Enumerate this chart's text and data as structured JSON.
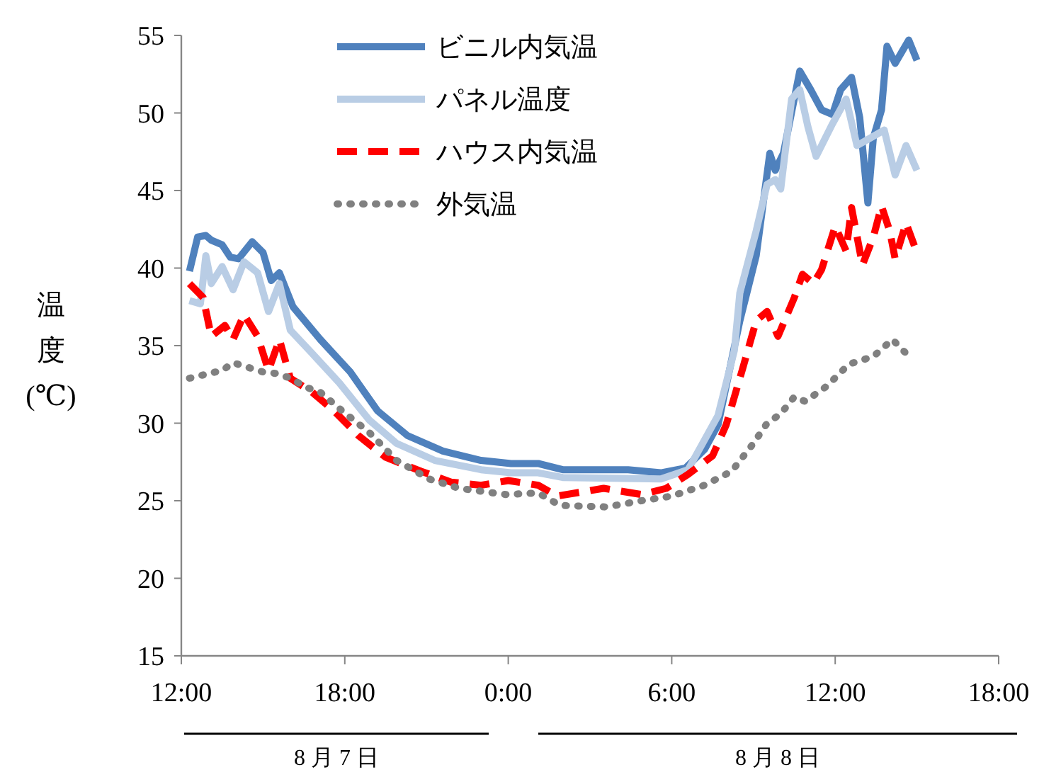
{
  "chart_data": {
    "type": "line",
    "ylabel": "温度(℃)",
    "xlim": [
      "--08-07T12:00",
      "--08-08T18:00"
    ],
    "xticks": [
      {
        "value": "--08-07T12:00",
        "label": "12:00"
      },
      {
        "value": "--08-07T18:00",
        "label": "18:00"
      },
      {
        "value": "--08-08T00:00",
        "label": "0:00"
      },
      {
        "value": "--08-08T06:00",
        "label": "6:00"
      },
      {
        "value": "--08-08T12:00",
        "label": "12:00"
      },
      {
        "value": "--08-08T18:00",
        "label": "18:00"
      }
    ],
    "ylim": [
      15,
      55
    ],
    "yticks": [
      15,
      20,
      25,
      30,
      35,
      40,
      45,
      50,
      55
    ],
    "grid": false,
    "legend": "top",
    "marker": "none",
    "annotations": [
      "8 月 7 日",
      "8 月 8 日"
    ],
    "series": [
      {
        "name": "ビニル内気温",
        "color": "#4f81bd",
        "line_style": "solid",
        "x": [
          "--08-07T12:18",
          "--08-07T12:36",
          "--08-07T12:54",
          "--08-07T13:06",
          "--08-07T13:30",
          "--08-07T13:48",
          "--08-07T14:06",
          "--08-07T14:36",
          "--08-07T15:00",
          "--08-07T15:18",
          "--08-07T15:36",
          "--08-07T16:06",
          "--08-07T17:06",
          "--08-07T18:12",
          "--08-07T19:12",
          "--08-07T20:18",
          "--08-07T21:36",
          "--08-07T23:00",
          "--08-08T00:06",
          "--08-08T01:06",
          "--08-08T02:00",
          "--08-08T04:24",
          "--08-08T05:36",
          "--08-08T06:30",
          "--08-08T07:12",
          "--08-08T07:42",
          "--08-08T08:30",
          "--08-08T09:06",
          "--08-08T09:36",
          "--08-08T09:48",
          "--08-08T10:06",
          "--08-08T10:42",
          "--08-08T11:06",
          "--08-08T11:30",
          "--08-08T11:54",
          "--08-08T12:12",
          "--08-08T12:36",
          "--08-08T12:54",
          "--08-08T13:12",
          "--08-08T13:24",
          "--08-08T13:42",
          "--08-08T13:54",
          "--08-08T14:12",
          "--08-08T14:42",
          "--08-08T15:00"
        ],
        "values": [
          39.8,
          42.0,
          42.1,
          41.8,
          41.5,
          40.7,
          40.6,
          41.7,
          41.0,
          39.2,
          39.7,
          37.5,
          35.4,
          33.3,
          30.8,
          29.2,
          28.2,
          27.6,
          27.4,
          27.4,
          27.0,
          27.0,
          26.8,
          27.1,
          28.3,
          29.9,
          36.6,
          40.8,
          47.4,
          46.3,
          47.4,
          52.7,
          51.5,
          50.2,
          49.9,
          51.5,
          52.3,
          49.7,
          44.2,
          48.4,
          50.2,
          54.3,
          53.2,
          54.7,
          53.4
        ]
      },
      {
        "name": "パネル温度",
        "color": "#b9cde5",
        "line_style": "solid",
        "x": [
          "--08-07T12:18",
          "--08-07T12:42",
          "--08-07T12:54",
          "--08-07T13:06",
          "--08-07T13:30",
          "--08-07T13:54",
          "--08-07T14:18",
          "--08-07T14:48",
          "--08-07T15:12",
          "--08-07T15:36",
          "--08-07T16:00",
          "--08-07T16:48",
          "--08-07T17:48",
          "--08-07T18:54",
          "--08-07T19:54",
          "--08-07T21:18",
          "--08-07T23:00",
          "--08-08T00:06",
          "--08-08T01:06",
          "--08-08T02:00",
          "--08-08T05:36",
          "--08-08T06:36",
          "--08-08T07:42",
          "--08-08T08:18",
          "--08-08T08:30",
          "--08-08T09:06",
          "--08-08T09:30",
          "--08-08T09:48",
          "--08-08T10:00",
          "--08-08T10:24",
          "--08-08T10:42",
          "--08-08T11:00",
          "--08-08T11:18",
          "--08-08T11:54",
          "--08-08T12:24",
          "--08-08T12:48",
          "--08-08T13:18",
          "--08-08T13:48",
          "--08-08T14:12",
          "--08-08T14:36",
          "--08-08T15:00"
        ],
        "values": [
          37.9,
          37.7,
          40.8,
          39.0,
          40.1,
          38.6,
          40.4,
          39.7,
          37.2,
          39.0,
          36.0,
          34.5,
          32.6,
          30.2,
          28.7,
          27.6,
          27.0,
          26.8,
          26.8,
          26.5,
          26.4,
          27.0,
          30.5,
          34.7,
          38.4,
          42.4,
          45.4,
          45.7,
          45.1,
          50.9,
          51.5,
          49.1,
          47.2,
          49.3,
          50.9,
          47.9,
          48.4,
          48.9,
          46.0,
          47.9,
          46.3
        ]
      },
      {
        "name": "ハウス内気温",
        "color": "#ff0000",
        "line_style": "dashed",
        "x": [
          "--08-07T12:18",
          "--08-07T12:48",
          "--08-07T13:06",
          "--08-07T13:36",
          "--08-07T13:54",
          "--08-07T14:18",
          "--08-07T14:48",
          "--08-07T15:12",
          "--08-07T15:36",
          "--08-07T16:00",
          "--08-07T16:48",
          "--08-07T17:36",
          "--08-07T18:30",
          "--08-07T19:30",
          "--08-07T20:48",
          "--08-07T21:54",
          "--08-07T23:00",
          "--08-08T00:00",
          "--08-08T01:06",
          "--08-08T01:48",
          "--08-08T03:30",
          "--08-08T04:54",
          "--08-08T05:48",
          "--08-08T06:36",
          "--08-08T07:30",
          "--08-08T08:00",
          "--08-08T08:36",
          "--08-08T09:06",
          "--08-08T09:30",
          "--08-08T09:54",
          "--08-08T10:30",
          "--08-08T10:48",
          "--08-08T11:12",
          "--08-08T11:30",
          "--08-08T12:00",
          "--08-08T12:24",
          "--08-08T12:36",
          "--08-08T13:00",
          "--08-08T13:24",
          "--08-08T13:42",
          "--08-08T14:00",
          "--08-08T14:12",
          "--08-08T14:36",
          "--08-08T15:00"
        ],
        "values": [
          39.0,
          38.1,
          35.6,
          36.3,
          35.4,
          37.0,
          35.6,
          33.4,
          35.4,
          32.9,
          32.0,
          30.8,
          29.2,
          27.8,
          26.9,
          26.2,
          26.0,
          26.3,
          26.0,
          25.3,
          25.8,
          25.4,
          25.8,
          26.7,
          27.9,
          29.9,
          33.5,
          36.6,
          37.2,
          35.6,
          38.1,
          39.6,
          39.0,
          39.9,
          42.7,
          41.1,
          43.9,
          40.2,
          42.0,
          44.0,
          42.4,
          40.6,
          42.9,
          41.0
        ]
      },
      {
        "name": "外気温",
        "color": "#808080",
        "line_style": "dotted",
        "x": [
          "--08-07T12:18",
          "--08-07T13:30",
          "--08-07T13:54",
          "--08-07T15:00",
          "--08-07T15:30",
          "--08-07T16:00",
          "--08-07T16:36",
          "--08-07T17:06",
          "--08-07T17:54",
          "--08-07T18:54",
          "--08-07T19:54",
          "--08-07T21:06",
          "--08-07T22:12",
          "--08-07T23:54",
          "--08-08T01:06",
          "--08-08T01:54",
          "--08-08T03:36",
          "--08-08T04:54",
          "--08-08T06:00",
          "--08-08T07:12",
          "--08-08T08:12",
          "--08-08T09:00",
          "--08-08T09:30",
          "--08-08T10:00",
          "--08-08T10:30",
          "--08-08T10:54",
          "--08-08T11:42",
          "--08-08T12:30",
          "--08-08T13:24",
          "--08-08T14:06",
          "--08-08T14:36"
        ],
        "values": [
          32.9,
          33.4,
          33.9,
          33.3,
          33.2,
          32.9,
          32.3,
          32.0,
          30.8,
          29.4,
          27.6,
          26.4,
          25.8,
          25.4,
          25.5,
          24.7,
          24.6,
          25.0,
          25.3,
          26.0,
          26.9,
          28.7,
          30.0,
          30.6,
          31.7,
          31.4,
          32.4,
          33.8,
          34.3,
          35.4,
          34.5
        ]
      }
    ]
  }
}
